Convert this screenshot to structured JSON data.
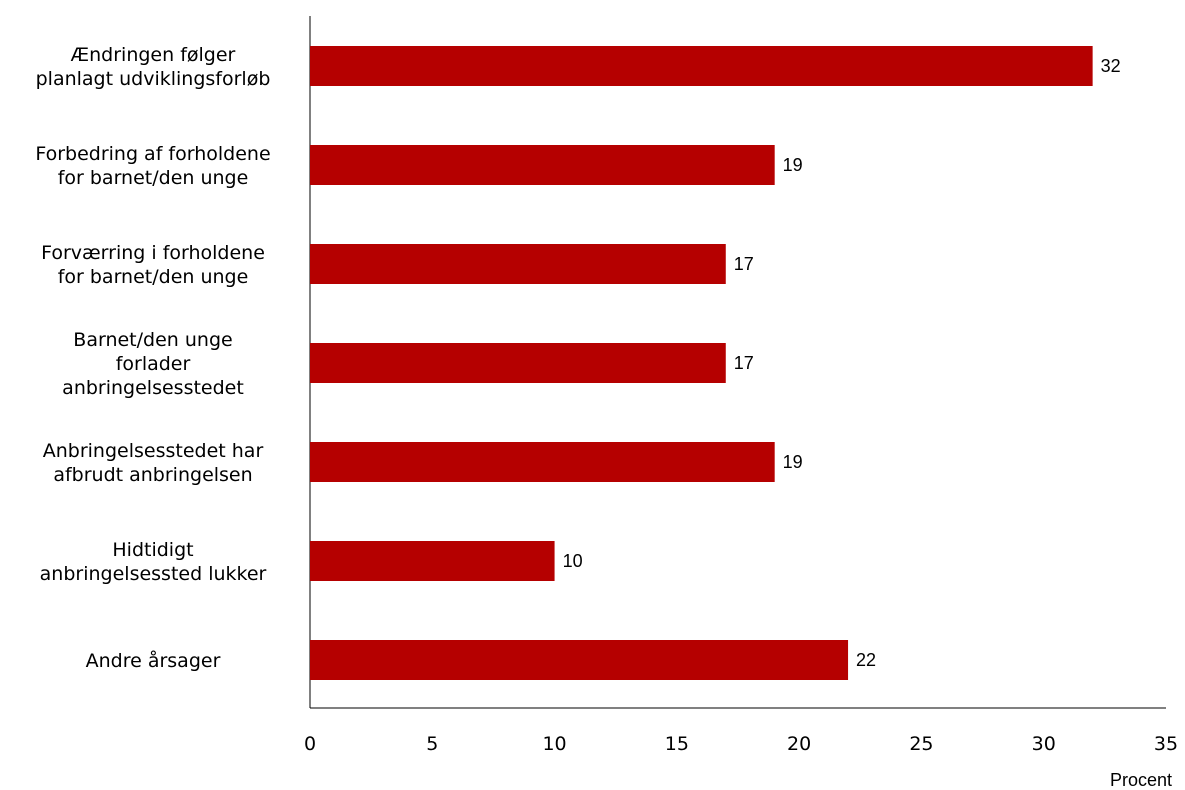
{
  "chart_data": {
    "type": "bar",
    "orientation": "horizontal",
    "categories": [
      [
        "Ændringen følger",
        "planlagt udviklingsforløb"
      ],
      [
        "Forbedring af forholdene",
        "for barnet/den unge"
      ],
      [
        "Forværring i forholdene",
        "for barnet/den unge"
      ],
      [
        "Barnet/den unge",
        "forlader",
        "anbringelsesstedet"
      ],
      [
        "Anbringelsesstedet har",
        "afbrudt anbringelsen"
      ],
      [
        "Hidtidigt",
        "anbringelsessted lukker"
      ],
      [
        "Andre årsager"
      ]
    ],
    "values": [
      32,
      19,
      17,
      17,
      19,
      10,
      22
    ],
    "xlabel": "Procent",
    "ylabel": "",
    "xlim": [
      0,
      35
    ],
    "xticks": [
      0,
      5,
      10,
      15,
      20,
      25,
      30,
      35
    ],
    "bar_color": "#b50000",
    "grid": false,
    "legend": "none"
  }
}
